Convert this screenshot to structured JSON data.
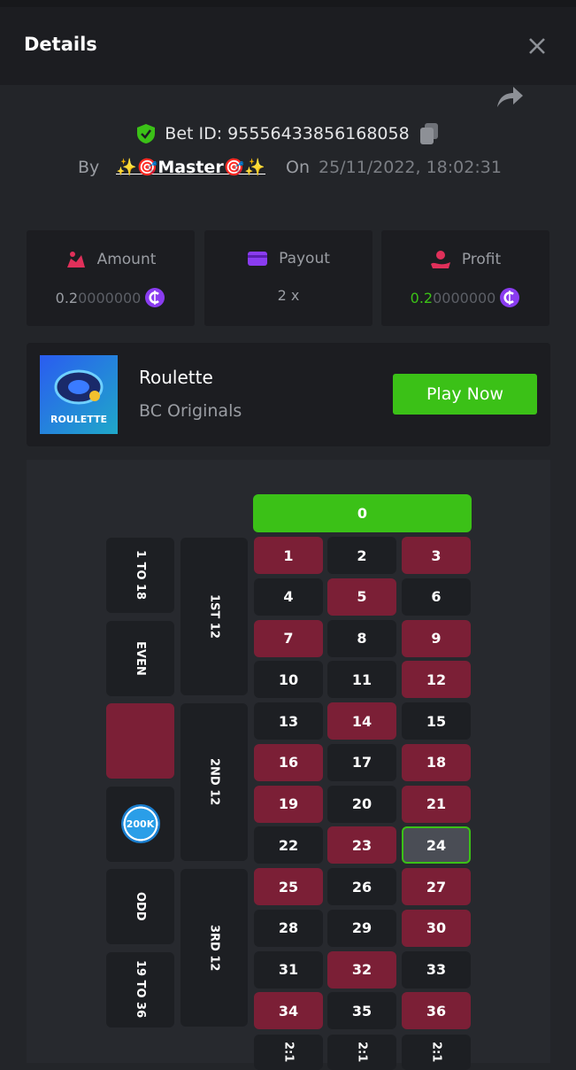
{
  "header": {
    "title": "Details"
  },
  "bet": {
    "id_text": "Bet ID: 95556433856168058",
    "by_label": "By",
    "user": "✨🎯Master🎯✨",
    "on_label": "On",
    "date": "25/11/2022, 18:02:31"
  },
  "stats": [
    {
      "label": "Amount",
      "lead": "0.2",
      "trail": "0000000"
    },
    {
      "label": "Payout",
      "value": "2 x"
    },
    {
      "label": "Profit",
      "lead": "0.2",
      "trail": "0000000"
    }
  ],
  "game": {
    "thumb_label": "ROULETTE",
    "name": "Roulette",
    "provider": "BC Originals",
    "button": "Play Now"
  },
  "board": {
    "zero": "0",
    "numbers": [
      {
        "label": "1",
        "color": "red"
      },
      {
        "label": "2",
        "color": "black"
      },
      {
        "label": "3",
        "color": "red"
      },
      {
        "label": "4",
        "color": "black"
      },
      {
        "label": "5",
        "color": "red"
      },
      {
        "label": "6",
        "color": "black"
      },
      {
        "label": "7",
        "color": "red"
      },
      {
        "label": "8",
        "color": "black"
      },
      {
        "label": "9",
        "color": "red"
      },
      {
        "label": "10",
        "color": "black"
      },
      {
        "label": "11",
        "color": "black"
      },
      {
        "label": "12",
        "color": "red"
      },
      {
        "label": "13",
        "color": "black"
      },
      {
        "label": "14",
        "color": "red"
      },
      {
        "label": "15",
        "color": "black"
      },
      {
        "label": "16",
        "color": "red"
      },
      {
        "label": "17",
        "color": "black"
      },
      {
        "label": "18",
        "color": "red"
      },
      {
        "label": "19",
        "color": "red"
      },
      {
        "label": "20",
        "color": "black"
      },
      {
        "label": "21",
        "color": "red"
      },
      {
        "label": "22",
        "color": "black"
      },
      {
        "label": "23",
        "color": "red"
      },
      {
        "label": "24",
        "color": "black",
        "selected": true
      },
      {
        "label": "25",
        "color": "red"
      },
      {
        "label": "26",
        "color": "black"
      },
      {
        "label": "27",
        "color": "red"
      },
      {
        "label": "28",
        "color": "black"
      },
      {
        "label": "29",
        "color": "black"
      },
      {
        "label": "30",
        "color": "red"
      },
      {
        "label": "31",
        "color": "black"
      },
      {
        "label": "32",
        "color": "red"
      },
      {
        "label": "33",
        "color": "black"
      },
      {
        "label": "34",
        "color": "red"
      },
      {
        "label": "35",
        "color": "black"
      },
      {
        "label": "36",
        "color": "red"
      }
    ],
    "outside": [
      {
        "label": "1 TO 18"
      },
      {
        "label": "EVEN"
      },
      {
        "color": "red"
      },
      {
        "chip": "200K"
      },
      {
        "label": "ODD"
      },
      {
        "label": "19 TO 36"
      }
    ],
    "dozens": [
      "1ST 12",
      "2ND 12",
      "3RD 12"
    ],
    "columns": [
      "2:1",
      "2:1",
      "2:1"
    ]
  }
}
